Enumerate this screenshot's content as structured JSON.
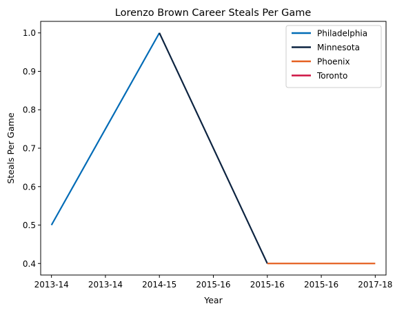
{
  "chart_data": {
    "type": "line",
    "title": "Lorenzo Brown Career Steals Per Game",
    "xlabel": "Year",
    "ylabel": "Steals Per Game",
    "x_tick_labels": [
      "2013-14",
      "2013-14",
      "2014-15",
      "2015-16",
      "2015-16",
      "2015-16",
      "2017-18"
    ],
    "xlim": [
      -0.2,
      6.2
    ],
    "ylim": [
      0.37,
      1.03
    ],
    "y_ticks": [
      0.4,
      0.5,
      0.6,
      0.7,
      0.8,
      0.9,
      1.0
    ],
    "grid": false,
    "legend_position": "top-right",
    "series": [
      {
        "name": "Philadelphia",
        "color": "#006bb6",
        "x": [
          0,
          2
        ],
        "y": [
          0.5,
          1.0
        ]
      },
      {
        "name": "Minnesota",
        "color": "#0c2340",
        "x": [
          2,
          4
        ],
        "y": [
          1.0,
          0.4
        ]
      },
      {
        "name": "Phoenix",
        "color": "#e56020",
        "x": [
          4,
          6
        ],
        "y": [
          0.4,
          0.4
        ]
      },
      {
        "name": "Toronto",
        "color": "#ce1141",
        "x": [],
        "y": []
      }
    ]
  }
}
